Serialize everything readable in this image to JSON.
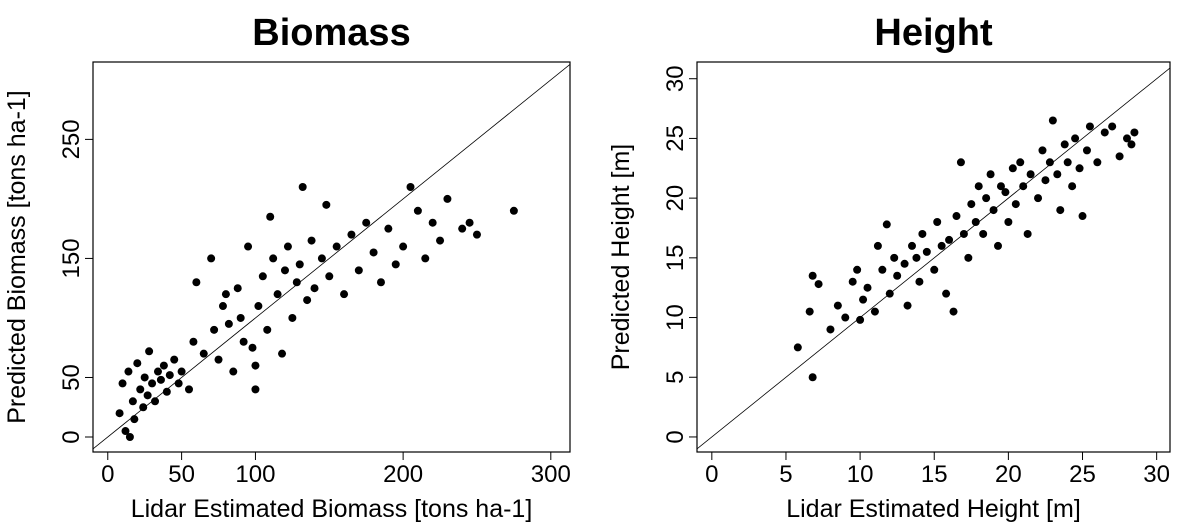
{
  "chart_data": [
    {
      "type": "scatter",
      "title": "Biomass",
      "xlabel": "Lidar Estimated Biomass [tons ha-1]",
      "ylabel": "Predicted Biomass [tons ha-1]",
      "color": "#000000",
      "xlim": [
        -10,
        313
      ],
      "ylim": [
        -12.6,
        315
      ],
      "xticks": [
        0,
        50,
        100,
        200,
        300
      ],
      "yticks": [
        0,
        50,
        150,
        250
      ],
      "x": [
        8,
        10,
        12,
        14,
        15,
        17,
        18,
        20,
        22,
        24,
        25,
        27,
        28,
        30,
        32,
        34,
        36,
        38,
        40,
        42,
        45,
        48,
        50,
        55,
        58,
        60,
        65,
        70,
        72,
        75,
        78,
        80,
        82,
        85,
        88,
        90,
        92,
        95,
        98,
        100,
        102,
        105,
        108,
        110,
        112,
        115,
        118,
        120,
        122,
        125,
        128,
        130,
        132,
        135,
        138,
        140,
        145,
        148,
        150,
        155,
        160,
        165,
        170,
        175,
        180,
        185,
        190,
        195,
        200,
        205,
        210,
        215,
        220,
        225,
        230,
        240,
        245,
        250,
        275,
        100
      ],
      "y": [
        20,
        45,
        5,
        55,
        0,
        30,
        15,
        62,
        40,
        25,
        50,
        35,
        72,
        45,
        30,
        55,
        48,
        60,
        38,
        52,
        65,
        45,
        55,
        40,
        80,
        130,
        70,
        150,
        90,
        65,
        110,
        120,
        95,
        55,
        125,
        100,
        80,
        160,
        75,
        40,
        110,
        135,
        90,
        185,
        150,
        120,
        70,
        140,
        160,
        100,
        130,
        145,
        210,
        115,
        165,
        125,
        150,
        195,
        135,
        160,
        120,
        170,
        140,
        180,
        155,
        130,
        175,
        145,
        160,
        210,
        190,
        150,
        180,
        165,
        200,
        175,
        180,
        170,
        190,
        60
      ]
    },
    {
      "type": "scatter",
      "title": "Height",
      "xlabel": "Lidar Estimated Height [m]",
      "ylabel": "Predicted Height [m]",
      "color": "#000000",
      "xlim": [
        -1.0,
        30.9
      ],
      "ylim": [
        -1.26,
        31.4
      ],
      "xticks": [
        0,
        5,
        10,
        15,
        20,
        25,
        30
      ],
      "yticks": [
        0,
        5,
        10,
        15,
        20,
        25,
        30
      ],
      "x": [
        5.8,
        6.6,
        6.8,
        6.8,
        7.2,
        8,
        8.5,
        9,
        9.5,
        9.8,
        10,
        10.2,
        10.5,
        11,
        11.2,
        11.5,
        11.8,
        12,
        12.3,
        12.5,
        13,
        13.2,
        13.5,
        13.8,
        14,
        14.2,
        14.5,
        15,
        15.2,
        15.5,
        15.8,
        16,
        16.3,
        16.5,
        16.8,
        17,
        17.3,
        17.5,
        17.8,
        18,
        18.3,
        18.5,
        18.8,
        19,
        19.3,
        19.5,
        19.8,
        20,
        20.3,
        20.5,
        20.8,
        21,
        21.3,
        21.5,
        22,
        22.3,
        22.5,
        22.8,
        23,
        23.3,
        23.5,
        23.8,
        24,
        24.3,
        24.5,
        24.8,
        25,
        25.3,
        25.5,
        26,
        26.5,
        27,
        27.5,
        28,
        28.5,
        28.3
      ],
      "y": [
        7.5,
        10.5,
        13.5,
        5,
        12.8,
        9,
        11,
        10,
        13,
        14,
        9.8,
        11.5,
        12.5,
        10.5,
        16,
        14,
        17.8,
        12,
        15,
        13.5,
        14.5,
        11,
        16,
        15,
        13,
        17,
        15.5,
        14,
        18,
        16,
        12,
        16.5,
        10.5,
        18.5,
        23,
        17,
        15,
        19.5,
        18,
        21,
        17,
        20,
        22,
        19,
        16,
        21,
        20.5,
        18,
        22.5,
        19.5,
        23,
        21,
        17,
        22,
        20,
        24,
        21.5,
        23,
        26.5,
        22,
        19,
        24.5,
        23,
        21,
        25,
        22.5,
        18.5,
        24,
        26,
        23,
        25.5,
        26,
        23.5,
        25,
        25.5,
        24.5
      ]
    }
  ]
}
